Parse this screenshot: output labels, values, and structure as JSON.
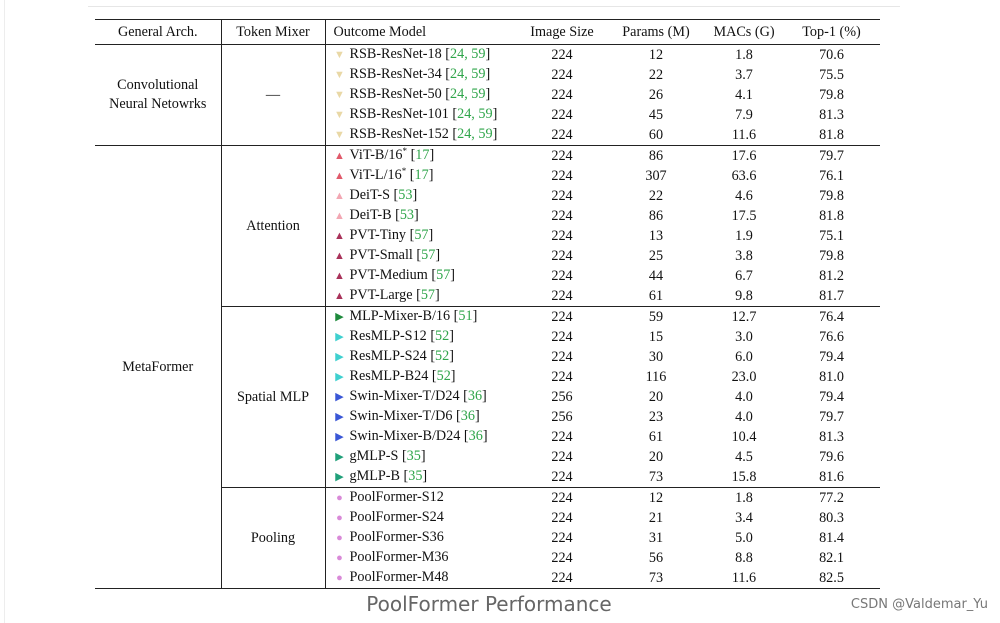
{
  "headers": {
    "arch": "General Arch.",
    "mixer": "Token Mixer",
    "model": "Outcome Model",
    "image_size": "Image Size",
    "params": "Params (M)",
    "macs": "MACs (G)",
    "top1": "Top-1 (%)"
  },
  "groups": {
    "conv": {
      "arch_line1": "Convolutional",
      "arch_line2": "Neural Netowrks",
      "mixer": "—",
      "rows": [
        {
          "marker": "▼",
          "color": "#e9d8a6",
          "name": "RSB-ResNet-18",
          "refs": "24, 59",
          "image_size": "224",
          "params": "12",
          "macs": "1.8",
          "top1": "70.6"
        },
        {
          "marker": "▼",
          "color": "#e9d8a6",
          "name": "RSB-ResNet-34",
          "refs": "24, 59",
          "image_size": "224",
          "params": "22",
          "macs": "3.7",
          "top1": "75.5"
        },
        {
          "marker": "▼",
          "color": "#e9d8a6",
          "name": "RSB-ResNet-50",
          "refs": "24, 59",
          "image_size": "224",
          "params": "26",
          "macs": "4.1",
          "top1": "79.8"
        },
        {
          "marker": "▼",
          "color": "#e9d8a6",
          "name": "RSB-ResNet-101",
          "refs": "24, 59",
          "image_size": "224",
          "params": "45",
          "macs": "7.9",
          "top1": "81.3"
        },
        {
          "marker": "▼",
          "color": "#e9d8a6",
          "name": "RSB-ResNet-152",
          "refs": "24, 59",
          "image_size": "224",
          "params": "60",
          "macs": "11.6",
          "top1": "81.8"
        }
      ]
    },
    "meta": {
      "arch": "MetaFormer",
      "attention": {
        "mixer": "Attention",
        "rows": [
          {
            "marker": "▲",
            "color": "#e05a6b",
            "name": "ViT-B/16",
            "sup": "*",
            "refs": "17",
            "image_size": "224",
            "params": "86",
            "macs": "17.6",
            "top1": "79.7"
          },
          {
            "marker": "▲",
            "color": "#e05a6b",
            "name": "ViT-L/16",
            "sup": "*",
            "refs": "17",
            "image_size": "224",
            "params": "307",
            "macs": "63.6",
            "top1": "76.1"
          },
          {
            "marker": "▲",
            "color": "#f2a7b3",
            "name": "DeiT-S",
            "sup": "",
            "refs": "53",
            "image_size": "224",
            "params": "22",
            "macs": "4.6",
            "top1": "79.8"
          },
          {
            "marker": "▲",
            "color": "#f2a7b3",
            "name": "DeiT-B",
            "sup": "",
            "refs": "53",
            "image_size": "224",
            "params": "86",
            "macs": "17.5",
            "top1": "81.8"
          },
          {
            "marker": "▲",
            "color": "#a8325a",
            "name": "PVT-Tiny",
            "sup": "",
            "refs": "57",
            "image_size": "224",
            "params": "13",
            "macs": "1.9",
            "top1": "75.1"
          },
          {
            "marker": "▲",
            "color": "#a8325a",
            "name": "PVT-Small",
            "sup": "",
            "refs": "57",
            "image_size": "224",
            "params": "25",
            "macs": "3.8",
            "top1": "79.8"
          },
          {
            "marker": "▲",
            "color": "#a8325a",
            "name": "PVT-Medium",
            "sup": "",
            "refs": "57",
            "image_size": "224",
            "params": "44",
            "macs": "6.7",
            "top1": "81.2"
          },
          {
            "marker": "▲",
            "color": "#a8325a",
            "name": "PVT-Large",
            "sup": "",
            "refs": "57",
            "image_size": "224",
            "params": "61",
            "macs": "9.8",
            "top1": "81.7"
          }
        ]
      },
      "spatial_mlp": {
        "mixer": "Spatial MLP",
        "rows": [
          {
            "marker": "▶",
            "color": "#1e8a3c",
            "name": "MLP-Mixer-B/16",
            "refs": "51",
            "image_size": "224",
            "params": "59",
            "macs": "12.7",
            "top1": "76.4"
          },
          {
            "marker": "▶",
            "color": "#3fd0cf",
            "name": "ResMLP-S12",
            "refs": "52",
            "image_size": "224",
            "params": "15",
            "macs": "3.0",
            "top1": "76.6"
          },
          {
            "marker": "▶",
            "color": "#3fd0cf",
            "name": "ResMLP-S24",
            "refs": "52",
            "image_size": "224",
            "params": "30",
            "macs": "6.0",
            "top1": "79.4"
          },
          {
            "marker": "▶",
            "color": "#3fd0cf",
            "name": "ResMLP-B24",
            "refs": "52",
            "image_size": "224",
            "params": "116",
            "macs": "23.0",
            "top1": "81.0"
          },
          {
            "marker": "▶",
            "color": "#3a57d6",
            "name": "Swin-Mixer-T/D24",
            "refs": "36",
            "image_size": "256",
            "params": "20",
            "macs": "4.0",
            "top1": "79.4"
          },
          {
            "marker": "▶",
            "color": "#3a57d6",
            "name": "Swin-Mixer-T/D6",
            "refs": "36",
            "image_size": "256",
            "params": "23",
            "macs": "4.0",
            "top1": "79.7"
          },
          {
            "marker": "▶",
            "color": "#3a57d6",
            "name": "Swin-Mixer-B/D24",
            "refs": "36",
            "image_size": "224",
            "params": "61",
            "macs": "10.4",
            "top1": "81.3"
          },
          {
            "marker": "▶",
            "color": "#21a07a",
            "name": "gMLP-S",
            "refs": "35",
            "image_size": "224",
            "params": "20",
            "macs": "4.5",
            "top1": "79.6"
          },
          {
            "marker": "▶",
            "color": "#21a07a",
            "name": "gMLP-B",
            "refs": "35",
            "image_size": "224",
            "params": "73",
            "macs": "15.8",
            "top1": "81.6"
          }
        ]
      },
      "pooling": {
        "mixer": "Pooling",
        "rows": [
          {
            "marker": "●",
            "color": "#d98ad8",
            "name": "PoolFormer-S12",
            "image_size": "224",
            "params": "12",
            "macs": "1.8",
            "top1": "77.2"
          },
          {
            "marker": "●",
            "color": "#d98ad8",
            "name": "PoolFormer-S24",
            "image_size": "224",
            "params": "21",
            "macs": "3.4",
            "top1": "80.3"
          },
          {
            "marker": "●",
            "color": "#d98ad8",
            "name": "PoolFormer-S36",
            "image_size": "224",
            "params": "31",
            "macs": "5.0",
            "top1": "81.4"
          },
          {
            "marker": "●",
            "color": "#d98ad8",
            "name": "PoolFormer-M36",
            "image_size": "224",
            "params": "56",
            "macs": "8.8",
            "top1": "82.1"
          },
          {
            "marker": "●",
            "color": "#d98ad8",
            "name": "PoolFormer-M48",
            "image_size": "224",
            "params": "73",
            "macs": "11.6",
            "top1": "82.5"
          }
        ]
      }
    }
  },
  "caption": "PoolFormer Performance",
  "watermark": "CSDN @Valdemar_Yu"
}
